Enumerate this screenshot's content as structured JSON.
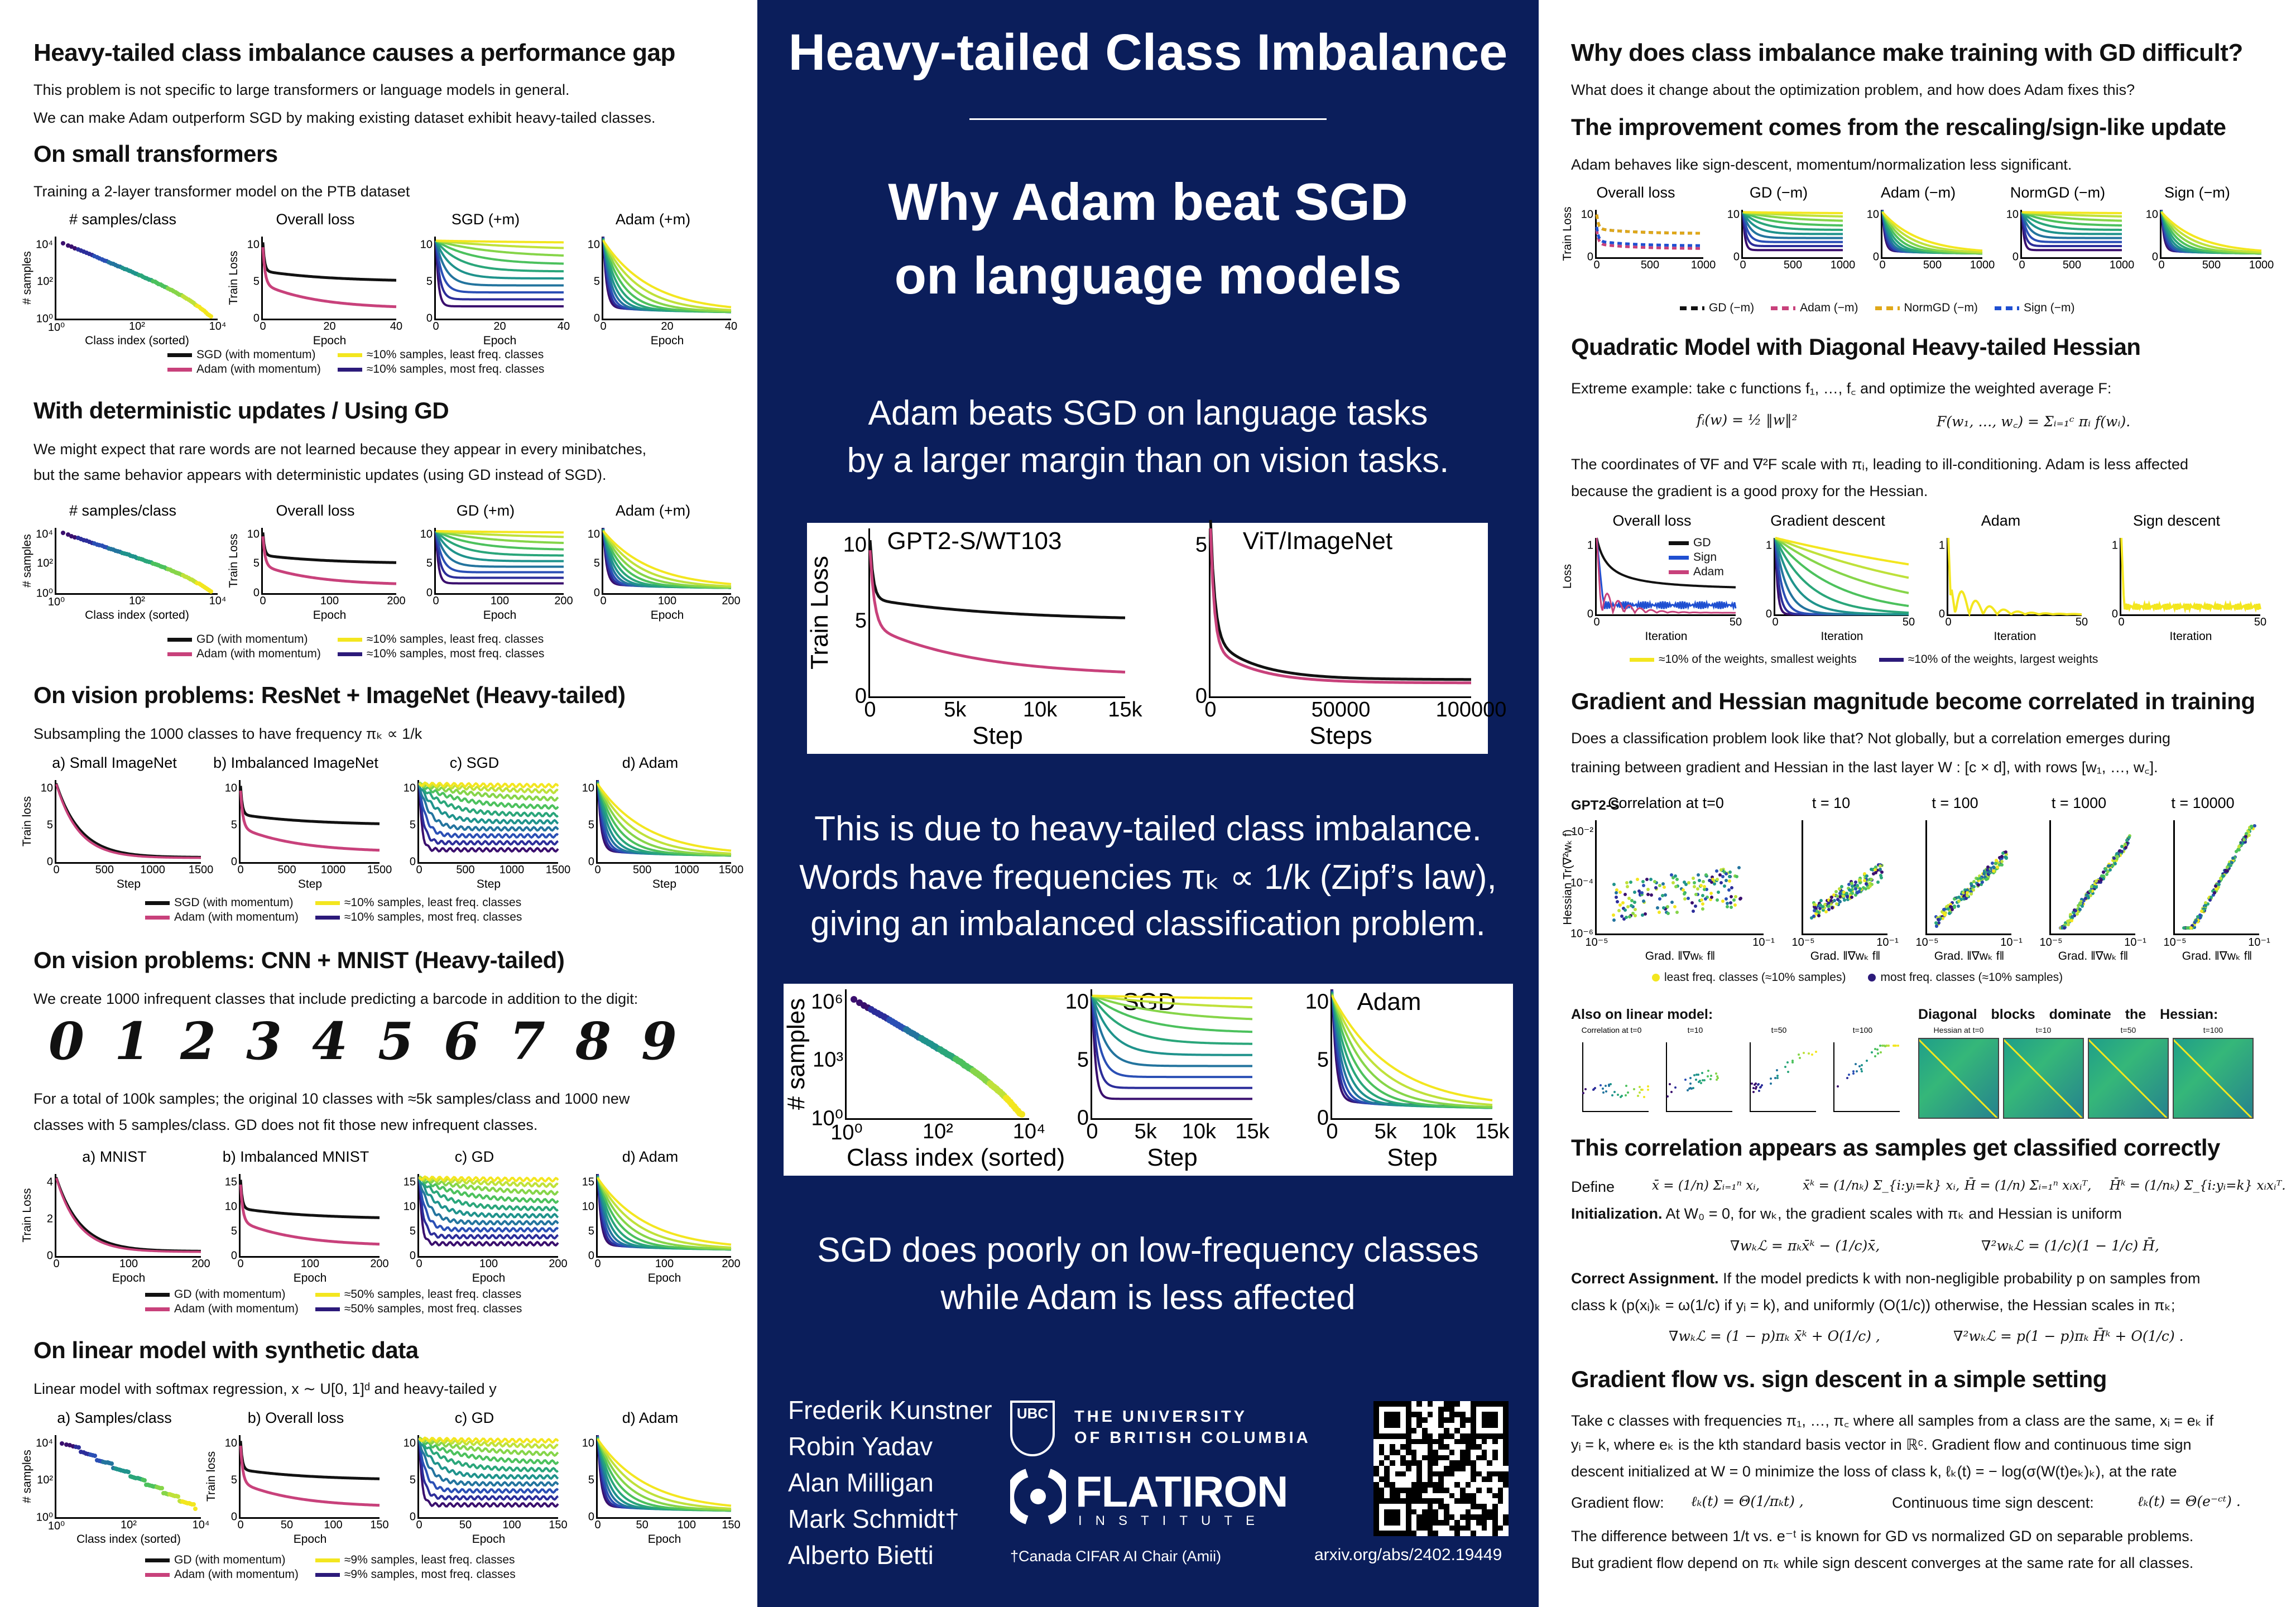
{
  "left": {
    "title": "Heavy-tailed class imbalance causes a performance gap",
    "intro": [
      "This problem is not specific to large transformers or language models in general.",
      "We can make Adam outperform SGD by making existing dataset exhibit heavy-tailed classes."
    ],
    "s1": {
      "heading": "On small transformers",
      "text": [
        "Training a 2-layer transformer model on the PTB dataset"
      ],
      "plots": [
        {
          "title": "# samples/class",
          "ylabel": "# samples",
          "xlabel": "Class index (sorted)",
          "xticks": [
            "10⁰",
            "10²",
            "10⁴"
          ],
          "yticks": [
            "10⁰",
            "10²",
            "10⁴"
          ]
        },
        {
          "title": "Overall loss",
          "ylabel": "Train Loss",
          "xlabel": "Epoch",
          "xticks": [
            "0",
            "20",
            "40"
          ],
          "yticks": [
            "0",
            "5",
            "10"
          ]
        },
        {
          "title": "SGD (+m)",
          "xlabel": "Epoch",
          "xticks": [
            "0",
            "20",
            "40"
          ],
          "yticks": [
            "0",
            "5",
            "10"
          ]
        },
        {
          "title": "Adam (+m)",
          "xlabel": "Epoch",
          "xticks": [
            "0",
            "20",
            "40"
          ],
          "yticks": [
            "0",
            "5",
            "10"
          ]
        }
      ],
      "legend": [
        "SGD (with momentum)",
        "≈10% samples, least freq. classes",
        "Adam (with momentum)",
        "≈10% samples, most freq. classes"
      ]
    },
    "s2": {
      "heading": "With deterministic updates / Using GD",
      "text": [
        "We might expect that rare words are not learned because they appear in every minibatches,",
        "but the same behavior appears with deterministic updates (using GD instead of SGD)."
      ],
      "plots": [
        {
          "title": "# samples/class",
          "ylabel": "# samples",
          "xlabel": "Class index (sorted)",
          "xticks": [
            "10⁰",
            "10²",
            "10⁴"
          ],
          "yticks": [
            "10⁰",
            "10²",
            "10⁴"
          ]
        },
        {
          "title": "Overall loss",
          "ylabel": "Train Loss",
          "xlabel": "Epoch",
          "xticks": [
            "0",
            "100",
            "200"
          ],
          "yticks": [
            "0",
            "5",
            "10"
          ]
        },
        {
          "title": "GD (+m)",
          "xlabel": "Epoch",
          "xticks": [
            "0",
            "100",
            "200"
          ],
          "yticks": [
            "0",
            "5",
            "10"
          ]
        },
        {
          "title": "Adam (+m)",
          "xlabel": "Epoch",
          "xticks": [
            "0",
            "100",
            "200"
          ],
          "yticks": [
            "0",
            "5",
            "10"
          ]
        }
      ],
      "legend": [
        "GD (with momentum)",
        "≈10% samples, least freq. classes",
        "Adam (with momentum)",
        "≈10% samples, most freq. classes"
      ]
    },
    "s3": {
      "heading": "On vision problems: ResNet + ImageNet (Heavy-tailed)",
      "text": [
        "Subsampling the 1000 classes to have frequency πₖ ∝ 1/k"
      ],
      "plots": [
        {
          "title": "a)   Small ImageNet",
          "ylabel": "Train loss",
          "xlabel": "Step",
          "xticks": [
            "0",
            "500",
            "1000",
            "1500"
          ],
          "yticks": [
            "0",
            "5",
            "10"
          ]
        },
        {
          "title": "b)  Imbalanced ImageNet",
          "xlabel": "Step",
          "xticks": [
            "0",
            "500",
            "1000",
            "1500"
          ],
          "yticks": [
            "0",
            "5",
            "10"
          ]
        },
        {
          "title": "c)   SGD",
          "xlabel": "Step",
          "xticks": [
            "0",
            "500",
            "1000",
            "1500"
          ],
          "yticks": [
            "0",
            "5",
            "10"
          ]
        },
        {
          "title": "d)   Adam",
          "xlabel": "Step",
          "xticks": [
            "0",
            "500",
            "1000",
            "1500"
          ],
          "yticks": [
            "0",
            "5",
            "10"
          ]
        }
      ],
      "legend": [
        "SGD (with momentum)",
        "≈10% samples, least freq. classes",
        "Adam (with momentum)",
        "≈10% samples, most freq. classes"
      ]
    },
    "s4": {
      "heading": "On vision problems: CNN + MNIST (Heavy-tailed)",
      "text": [
        "We create 1000 infrequent classes that include predicting a barcode in addition to the digit:"
      ],
      "digits": [
        "0",
        "1",
        "2",
        "3",
        "4",
        "5",
        "6",
        "7",
        "8",
        "9"
      ],
      "text2": [
        "For a total of 100k samples; the original 10 classes with ≈5k samples/class and 1000 new",
        "classes with 5 samples/class. GD does not fit those new infrequent classes."
      ],
      "plots": [
        {
          "title": "a)   MNIST",
          "ylabel": "Train Loss",
          "xlabel": "Epoch",
          "xticks": [
            "0",
            "100",
            "200"
          ],
          "yticks": [
            "0",
            "2",
            "4"
          ]
        },
        {
          "title": "b)  Imbalanced MNIST",
          "xlabel": "Epoch",
          "xticks": [
            "0",
            "100",
            "200"
          ],
          "yticks": [
            "0",
            "5",
            "10",
            "15"
          ]
        },
        {
          "title": "c)   GD",
          "xlabel": "Epoch",
          "xticks": [
            "0",
            "100",
            "200"
          ],
          "yticks": [
            "0",
            "5",
            "10",
            "15"
          ]
        },
        {
          "title": "d)   Adam",
          "xlabel": "Epoch",
          "xticks": [
            "0",
            "100",
            "200"
          ],
          "yticks": [
            "0",
            "5",
            "10",
            "15"
          ]
        }
      ],
      "legend": [
        "GD (with momentum)",
        "≈50% samples, least freq. classes",
        "Adam (with momentum)",
        "≈50% samples, most freq. classes"
      ]
    },
    "s5": {
      "heading": "On linear model with synthetic data",
      "text": [
        "Linear model with softmax regression, x ∼ U[0, 1]ᵈ and heavy-tailed y"
      ],
      "plots": [
        {
          "title": "a) Samples/class",
          "ylabel": "# samples",
          "xlabel": "Class index (sorted)",
          "xticks": [
            "10⁰",
            "10²",
            "10⁴"
          ],
          "yticks": [
            "10⁰",
            "10²",
            "10⁴"
          ]
        },
        {
          "title": "b) Overall loss",
          "ylabel": "Train loss",
          "xlabel": "Epoch",
          "xticks": [
            "0",
            "50",
            "100",
            "150"
          ],
          "yticks": [
            "0",
            "5",
            "10"
          ]
        },
        {
          "title": "c)   GD",
          "xlabel": "Epoch",
          "xticks": [
            "0",
            "50",
            "100",
            "150"
          ],
          "yticks": [
            "0",
            "5",
            "10"
          ]
        },
        {
          "title": "d)   Adam",
          "xlabel": "Epoch",
          "xticks": [
            "0",
            "50",
            "100",
            "150"
          ],
          "yticks": [
            "0",
            "5",
            "10"
          ]
        }
      ],
      "legend": [
        "GD (with momentum)",
        "≈9% samples, least freq. classes",
        "Adam (with momentum)",
        "≈9% samples, most freq. classes"
      ]
    }
  },
  "center": {
    "title": "Heavy-tailed Class Imbalance",
    "subtitle": [
      "Why Adam beat SGD",
      "on language models"
    ],
    "claim": [
      "Adam beats SGD on language tasks",
      "by a larger margin than on vision tasks."
    ],
    "fig1": [
      {
        "title": "GPT2-S/WT103",
        "ylabel": "Train Loss",
        "xlabel": "Step",
        "xticks": [
          "0",
          "5k",
          "10k",
          "15k"
        ],
        "yticks": [
          "0",
          "5",
          "10"
        ]
      },
      {
        "title": "ViT/ImageNet",
        "xlabel": "Steps",
        "xticks": [
          "0",
          "50000",
          "100000"
        ],
        "yticks": [
          "0",
          "5"
        ]
      }
    ],
    "cause": [
      "This is due to heavy-tailed class imbalance.",
      "Words have frequencies πₖ ∝ 1/k (Zipf’s law),",
      "giving an imbalanced classification problem."
    ],
    "fig2": [
      {
        "title": "",
        "ylabel": "# samples",
        "xlabel": "Class index (sorted)",
        "xticks": [
          "10⁰",
          "10²",
          "10⁴"
        ],
        "yticks": [
          "10⁰",
          "10³",
          "10⁶"
        ]
      },
      {
        "title": "SGD",
        "xlabel": "Step",
        "xticks": [
          "0",
          "5k",
          "10k",
          "15k"
        ],
        "yticks": [
          "0",
          "5",
          "10"
        ]
      },
      {
        "title": "Adam",
        "xlabel": "Step",
        "xticks": [
          "0",
          "5k",
          "10k",
          "15k"
        ],
        "yticks": [
          "0",
          "5",
          "10"
        ]
      }
    ],
    "conclusion": [
      "SGD does poorly on low-frequency classes",
      "while Adam is less affected"
    ],
    "authors": [
      "Frederik Kunstner",
      "Robin Yadav",
      "Alan Milligan",
      "Mark Schmidt†",
      "Alberto Bietti"
    ],
    "ubc": {
      "mark": "UBC",
      "line1": "THE UNIVERSITY",
      "line2": "OF BRITISH COLUMBIA"
    },
    "flatiron": {
      "name": "FLATIRON",
      "sub": "INSTITUTE"
    },
    "footnote": "†Canada CIFAR AI Chair (Amii)",
    "arxiv": "arxiv.org/abs/2402.19449"
  },
  "right": {
    "title": "Why does class imbalance make training with GD difficult?",
    "intro": "What does it change about the optimization problem, and how does Adam fixes this?",
    "r1": {
      "heading": "The improvement comes from the rescaling/sign-like update",
      "text": "Adam behaves like sign-descent, momentum/normalization less significant.",
      "plots": [
        {
          "title": "Overall loss",
          "ylabel": "Train Loss",
          "xticks": [
            "0",
            "500",
            "1000"
          ],
          "yticks": [
            "0",
            "10"
          ]
        },
        {
          "title": "GD (−m)",
          "xticks": [
            "0",
            "500",
            "1000"
          ],
          "yticks": [
            "0",
            "10"
          ]
        },
        {
          "title": "Adam (−m)",
          "xticks": [
            "0",
            "500",
            "1000"
          ],
          "yticks": [
            "0",
            "10"
          ]
        },
        {
          "title": "NormGD (−m)",
          "xticks": [
            "0",
            "500",
            "1000"
          ],
          "yticks": [
            "0",
            "10"
          ]
        },
        {
          "title": "Sign (−m)",
          "xticks": [
            "0",
            "500",
            "1000"
          ],
          "yticks": [
            "0",
            "10"
          ]
        }
      ],
      "legend": [
        "GD (−m)",
        "Adam (−m)",
        "NormGD (−m)",
        "Sign (−m)"
      ]
    },
    "r2": {
      "heading": "Quadratic Model with Diagonal Heavy-tailed Hessian",
      "text": "Extreme example: take c functions f₁, …, f꜀ and optimize the weighted average F:",
      "eq1": "fᵢ(w) = ½ ‖w‖²",
      "eq2": "F(w₁, …, w꜀) = Σᵢ₌₁ᶜ πᵢ f(wᵢ).",
      "text2": [
        "The coordinates of ∇F and ∇²F scale with πᵢ, leading to ill-conditioning. Adam is less affected",
        "because the gradient is a good proxy for the Hessian."
      ],
      "plots": [
        {
          "title": "Overall loss",
          "ylabel": "Loss",
          "xlabel": "Iteration",
          "xticks": [
            "0",
            "50"
          ],
          "yticks": [
            "0",
            "",
            "1"
          ]
        },
        {
          "title": "Gradient descent",
          "xlabel": "Iteration",
          "xticks": [
            "0",
            "50"
          ],
          "yticks": [
            "0",
            "",
            "1"
          ]
        },
        {
          "title": "Adam",
          "xlabel": "Iteration",
          "xticks": [
            "0",
            "50"
          ],
          "yticks": [
            "0",
            "",
            "1"
          ]
        },
        {
          "title": "Sign descent",
          "xlabel": "Iteration",
          "xticks": [
            "0",
            "50"
          ],
          "yticks": [
            "0",
            "",
            "1"
          ]
        }
      ],
      "inlegend": [
        "GD",
        "Sign",
        "Adam"
      ],
      "legend": [
        "≈10% of the weights, smallest weights",
        "≈10% of the weights, largest weights"
      ]
    },
    "r3": {
      "heading": "Gradient and Hessian magnitude become correlated in training",
      "text": [
        "Does a classification problem look like that? Not globally, but a correlation emerges during",
        "training between gradient and Hessian in the last layer W : [c × d], with rows [w₁, …, w꜀]."
      ],
      "model": "GPT2-S",
      "plots": [
        {
          "title": "Correlation at t=0",
          "ylabel": "Hessian Tr(∇²wₖ f)",
          "xlabel": "Grad. ‖∇wₖ f‖",
          "xticks": [
            "10⁻⁵",
            "10⁻¹"
          ],
          "yticks": [
            "10⁻⁶",
            "10⁻⁴",
            "10⁻²"
          ]
        },
        {
          "title": "t = 10",
          "xlabel": "Grad. ‖∇wₖ f‖",
          "xticks": [
            "10⁻⁵",
            "10⁻¹"
          ],
          "yticks": []
        },
        {
          "title": "t = 100",
          "xlabel": "Grad. ‖∇wₖ f‖",
          "xticks": [
            "10⁻⁵",
            "10⁻¹"
          ],
          "yticks": []
        },
        {
          "title": "t = 1000",
          "xlabel": "Grad. ‖∇wₖ f‖",
          "xticks": [
            "10⁻⁵",
            "10⁻¹"
          ],
          "yticks": []
        },
        {
          "title": "t = 10000",
          "xlabel": "Grad. ‖∇wₖ f‖",
          "xticks": [
            "10⁻⁵",
            "10⁻¹"
          ],
          "yticks": []
        }
      ],
      "legend": [
        "least freq. classes (≈10% samples)",
        "most freq. classes (≈10% samples)"
      ],
      "linear_label": "Also on linear model:",
      "diag_label": "Diagonal blocks dominate the Hessian:",
      "small": [
        {
          "title": "Correlation at t=0"
        },
        {
          "title": "t=10"
        },
        {
          "title": "t=50"
        },
        {
          "title": "t=100"
        }
      ],
      "heat": [
        {
          "title": "Hessian at t=0"
        },
        {
          "title": "t=10"
        },
        {
          "title": "t=50"
        },
        {
          "title": "t=100"
        }
      ]
    },
    "r4": {
      "heading": "This correlation appears as samples get classified correctly",
      "define": "Define",
      "defs": [
        "x̄ = (1/n) Σᵢ₌₁ⁿ xᵢ,",
        "x̄ᵏ = (1/nₖ) Σ_{i:yᵢ=k} xᵢ,",
        "H̄ = (1/n) Σᵢ₌₁ⁿ xᵢxᵢᵀ,",
        "H̄ᵏ = (1/nₖ) Σ_{i:yᵢ=k} xᵢxᵢᵀ."
      ],
      "init_bold": "Initialization.",
      "init": " At W₀ = 0, for wₖ, the gradient scales with πₖ and Hessian is uniform",
      "eq_init": [
        "∇wₖℒ = πₖx̄ᵏ − (1/c)x̄,",
        "∇²wₖℒ = (1/c)(1 − 1/c) H̄,"
      ],
      "correct_bold": "Correct Assignment.",
      "correct": [
        " If the model predicts k with non-negligible probability p on samples from",
        "class k (p(xᵢ)ₖ = ω(1/c) if yᵢ = k), and uniformly (O(1/c)) otherwise, the Hessian scales in πₖ;"
      ],
      "eq_correct": [
        "∇wₖℒ = (1 − p)πₖ x̄ᵏ + O(1/c) ,",
        "∇²wₖℒ = p(1 − p)πₖ H̄ᵏ + O(1/c) ."
      ]
    },
    "r5": {
      "heading": "Gradient flow vs. sign descent in a simple setting",
      "text": [
        "Take c classes with frequencies π₁, …, π꜀ where all samples from a class are the same, xᵢ = eₖ if",
        "yᵢ = k, where eₖ is the kth standard basis vector in ℝᶜ. Gradient flow and continuous time sign",
        "descent initialized at W = 0 minimize the loss of class k, ℓₖ(t) = − log(σ(W(t)eₖ)ₖ), at the rate"
      ],
      "gf_label": "Gradient flow:",
      "gf_eq": "ℓₖ(t) = Θ(1/πₖt) ,",
      "sd_label": "Continuous time sign descent:",
      "sd_eq": "ℓₖ(t) = Θ(e⁻ᶜᵗ) .",
      "text2": [
        "The difference between 1/t vs. e⁻ᵗ is known for GD vs normalized GD on separable problems.",
        "But gradient flow depend on πₖ while sign descent converges at the same rate for all classes."
      ]
    }
  },
  "colors": {
    "navy": "#0b1e5b",
    "sgd": "#111111",
    "adam": "#c8417b",
    "normgd": "#e0a81a",
    "sign": "#1f4fd1",
    "least": "#f3e61f",
    "most": "#2c1a7a"
  }
}
